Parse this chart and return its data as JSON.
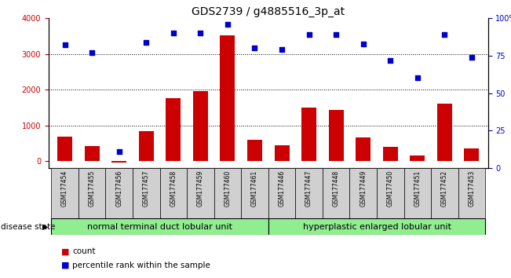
{
  "title": "GDS2739 / g4885516_3p_at",
  "samples": [
    "GSM177454",
    "GSM177455",
    "GSM177456",
    "GSM177457",
    "GSM177458",
    "GSM177459",
    "GSM177460",
    "GSM177461",
    "GSM177446",
    "GSM177447",
    "GSM177448",
    "GSM177449",
    "GSM177450",
    "GSM177451",
    "GSM177452",
    "GSM177453"
  ],
  "counts": [
    680,
    420,
    -50,
    840,
    1750,
    1950,
    3510,
    590,
    440,
    1500,
    1430,
    670,
    390,
    150,
    1600,
    360
  ],
  "percentiles": [
    82,
    77,
    11,
    84,
    90,
    90,
    96,
    80,
    79,
    89,
    89,
    83,
    72,
    60,
    89,
    74
  ],
  "group1_count": 8,
  "group2_count": 8,
  "group1_label": "normal terminal duct lobular unit",
  "group2_label": "hyperplastic enlarged lobular unit",
  "disease_state_label": "disease state",
  "bar_color": "#cc0000",
  "scatter_color": "#0000cc",
  "ylim_left": [
    -200,
    4000
  ],
  "ylim_right": [
    0,
    100
  ],
  "yticks_left": [
    0,
    1000,
    2000,
    3000,
    4000
  ],
  "yticks_right": [
    0,
    25,
    50,
    75,
    100
  ],
  "grid_color": "black",
  "sample_bg_color": "#d0d0d0",
  "group1_color": "#90ee90",
  "group2_color": "#90ee90",
  "legend_count_label": "count",
  "legend_pct_label": "percentile rank within the sample",
  "title_fontsize": 10,
  "tick_fontsize": 7,
  "sample_fontsize": 5.5,
  "group_fontsize": 8,
  "legend_fontsize": 7.5,
  "disease_state_fontsize": 7.5
}
